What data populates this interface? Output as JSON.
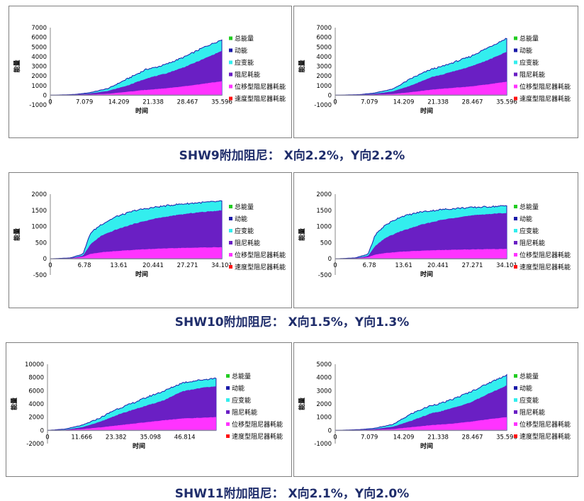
{
  "captions": [
    "SHW9附加阻尼： X向2.2%，Y向2.2%",
    "SHW10附加阻尼： X向1.5%，Y向1.3%",
    "SHW11附加阻尼： X向2.1%，Y向2.0%"
  ],
  "colors": {
    "total": "#22cc22",
    "kinetic": "#1a1aa8",
    "strain": "#33eeee",
    "damping": "#6a1fc4",
    "disp_damper": "#ff33ff",
    "vel_damper": "#ff1111"
  },
  "chart_data": [
    {
      "type": "area",
      "xlabel": "时间",
      "ylabel": "能量",
      "xlim": [
        0,
        35.596
      ],
      "ylim": [
        -1000,
        7000
      ],
      "xticks": [
        "0",
        "7.079",
        "14.209",
        "21.338",
        "28.467",
        "35.596"
      ],
      "yticks": [
        "7000",
        "6000",
        "5000",
        "4000",
        "3000",
        "2000",
        "1000",
        "0",
        "-1000"
      ],
      "legend": [
        "总能量",
        "动能",
        "应变能",
        "阻尼耗能",
        "位移型阻尼器耗能",
        "速度型阻尼器耗能"
      ],
      "legend_position": "right",
      "x": [
        0,
        5,
        8,
        12,
        16,
        20,
        22,
        24,
        28,
        32,
        35.6
      ],
      "series": [
        {
          "name": "位移型阻尼器耗能",
          "values": [
            0,
            20,
            60,
            150,
            350,
            560,
            640,
            720,
            930,
            1200,
            1450
          ]
        },
        {
          "name": "阻尼耗能",
          "values": [
            0,
            60,
            180,
            450,
            1000,
            1750,
            2000,
            2250,
            2950,
            3800,
            4600
          ]
        },
        {
          "name": "总能量",
          "values": [
            0,
            80,
            250,
            700,
            1700,
            2700,
            2900,
            3200,
            4000,
            5000,
            5750
          ]
        }
      ]
    },
    {
      "type": "area",
      "xlabel": "时间",
      "ylabel": "能量",
      "xlim": [
        0,
        35.596
      ],
      "ylim": [
        -1000,
        7000
      ],
      "xticks": [
        "0",
        "7.079",
        "14.209",
        "21.338",
        "28.467",
        "35.596"
      ],
      "yticks": [
        "7000",
        "6000",
        "5000",
        "4000",
        "3000",
        "2000",
        "1000",
        "0",
        "-1000"
      ],
      "legend": [
        "总能量",
        "动能",
        "应变能",
        "阻尼耗能",
        "位移型阻尼器耗能",
        "速度型阻尼器耗能"
      ],
      "legend_position": "right",
      "x": [
        0,
        5,
        8,
        12,
        16,
        20,
        22,
        24,
        28,
        32,
        35.6
      ],
      "series": [
        {
          "name": "位移型阻尼器耗能",
          "values": [
            0,
            15,
            50,
            130,
            330,
            580,
            660,
            750,
            900,
            1150,
            1400
          ]
        },
        {
          "name": "阻尼耗能",
          "values": [
            0,
            50,
            150,
            400,
            1050,
            1900,
            2100,
            2400,
            2950,
            3700,
            4500
          ]
        },
        {
          "name": "总能量",
          "values": [
            0,
            70,
            220,
            650,
            1800,
            2700,
            2950,
            3300,
            4000,
            5000,
            5900
          ]
        }
      ]
    },
    {
      "type": "area",
      "xlabel": "时间",
      "ylabel": "能量",
      "xlim": [
        0,
        34.101
      ],
      "ylim": [
        -500,
        2000
      ],
      "xticks": [
        "0",
        "6.78",
        "13.61",
        "20.441",
        "27.271",
        "34.101"
      ],
      "yticks": [
        "2000",
        "1500",
        "1000",
        "500",
        "0",
        "-500"
      ],
      "legend": [
        "总能量",
        "动能",
        "应变能",
        "阻尼耗能",
        "位移型阻尼器耗能",
        "速度型阻尼器耗能"
      ],
      "legend_position": "right",
      "x": [
        0,
        4,
        6.5,
        8,
        10,
        13,
        17,
        21,
        25,
        29,
        34.1
      ],
      "series": [
        {
          "name": "位移型阻尼器耗能",
          "values": [
            0,
            10,
            60,
            150,
            200,
            240,
            280,
            310,
            330,
            345,
            360
          ]
        },
        {
          "name": "阻尼耗能",
          "values": [
            0,
            20,
            100,
            450,
            700,
            900,
            1100,
            1250,
            1350,
            1430,
            1500
          ]
        },
        {
          "name": "总能量",
          "values": [
            0,
            30,
            150,
            800,
            1050,
            1300,
            1500,
            1600,
            1680,
            1730,
            1780
          ]
        }
      ]
    },
    {
      "type": "area",
      "xlabel": "时间",
      "ylabel": "能量",
      "xlim": [
        0,
        34.101
      ],
      "ylim": [
        -500,
        2000
      ],
      "xticks": [
        "0",
        "6.78",
        "13.61",
        "20.441",
        "27.271",
        "34.101"
      ],
      "yticks": [
        "2000",
        "1500",
        "1000",
        "500",
        "0",
        "-500"
      ],
      "legend": [
        "总能量",
        "动能",
        "应变能",
        "阻尼耗能",
        "位移型阻尼器耗能",
        "速度型阻尼器耗能"
      ],
      "legend_position": "right",
      "x": [
        0,
        4,
        6.5,
        8,
        10,
        13,
        17,
        21,
        25,
        29,
        34.1
      ],
      "series": [
        {
          "name": "位移型阻尼器耗能",
          "values": [
            0,
            10,
            50,
            130,
            180,
            220,
            250,
            270,
            285,
            295,
            305
          ]
        },
        {
          "name": "阻尼耗能",
          "values": [
            0,
            20,
            90,
            400,
            650,
            850,
            1050,
            1200,
            1300,
            1370,
            1420
          ]
        },
        {
          "name": "总能量",
          "values": [
            0,
            30,
            140,
            750,
            1050,
            1300,
            1450,
            1520,
            1570,
            1600,
            1640
          ]
        }
      ]
    },
    {
      "type": "area",
      "xlabel": "时间",
      "ylabel": "能量",
      "xlim": [
        0,
        58.5
      ],
      "ylim": [
        -2000,
        10000
      ],
      "xticks": [
        "0",
        "11.666",
        "23.382",
        "35.098",
        "46.814"
      ],
      "yticks": [
        "10000",
        "8000",
        "6000",
        "4000",
        "2000",
        "0",
        "-2000"
      ],
      "legend": [
        "总能量",
        "动能",
        "应变能",
        "阻尼耗能",
        "位移型阻尼器耗能",
        "速度型阻尼器耗能"
      ],
      "legend_position": "right",
      "x": [
        0,
        6,
        12,
        18,
        23,
        29,
        35,
        40,
        46,
        52,
        57.5
      ],
      "series": [
        {
          "name": "位移型阻尼器耗能",
          "values": [
            0,
            50,
            200,
            450,
            700,
            1000,
            1300,
            1550,
            1800,
            1900,
            2000
          ]
        },
        {
          "name": "阻尼耗能",
          "values": [
            0,
            100,
            500,
            1300,
            2200,
            3100,
            3900,
            4600,
            5900,
            6400,
            6700
          ]
        },
        {
          "name": "总能量",
          "values": [
            0,
            200,
            800,
            1900,
            3100,
            4100,
            5200,
            6000,
            7200,
            7600,
            7900
          ]
        }
      ]
    },
    {
      "type": "area",
      "xlabel": "时间",
      "ylabel": "能量",
      "xlim": [
        0,
        35.596
      ],
      "ylim": [
        -1000,
        5000
      ],
      "xticks": [
        "0",
        "7.079",
        "14.209",
        "21.338",
        "28.467",
        "35.596"
      ],
      "yticks": [
        "5000",
        "4000",
        "3000",
        "2000",
        "1000",
        "0",
        "-1000"
      ],
      "legend": [
        "总能量",
        "动能",
        "应变能",
        "阻尼耗能",
        "位移型阻尼器耗能",
        "速度型阻尼器耗能"
      ],
      "legend_position": "right",
      "x": [
        0,
        5,
        8,
        12,
        16,
        20,
        22,
        24,
        28,
        32,
        35.6
      ],
      "series": [
        {
          "name": "位移型阻尼器耗能",
          "values": [
            0,
            15,
            40,
            100,
            250,
            400,
            450,
            500,
            650,
            850,
            1000
          ]
        },
        {
          "name": "阻尼耗能",
          "values": [
            0,
            40,
            100,
            280,
            750,
            1300,
            1450,
            1650,
            2100,
            2800,
            3400
          ]
        },
        {
          "name": "总能量",
          "values": [
            0,
            60,
            150,
            450,
            1300,
            1900,
            2050,
            2300,
            2900,
            3600,
            4200
          ]
        }
      ]
    }
  ]
}
